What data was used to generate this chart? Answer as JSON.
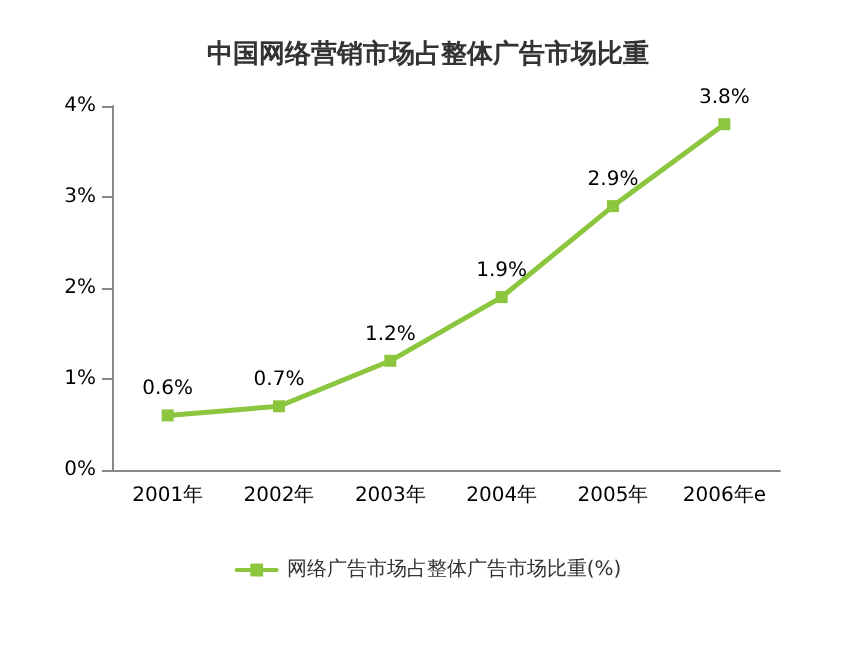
{
  "chart_data": {
    "type": "line",
    "title": "中国网络营销市场占整体广告市场比重",
    "categories": [
      "2001年",
      "2002年",
      "2003年",
      "2004年",
      "2005年",
      "2006年e"
    ],
    "series": [
      {
        "name": "网络广告市场占整体广告市场比重(%)",
        "color": "#8cc63f",
        "values": [
          0.6,
          0.7,
          1.2,
          1.9,
          2.9,
          3.8
        ],
        "value_labels": [
          "0.6%",
          "0.7%",
          "1.2%",
          "1.9%",
          "2.9%",
          "3.8%"
        ]
      }
    ],
    "ylim": [
      0,
      4
    ],
    "yticks": [
      {
        "value": 0,
        "label": "0%"
      },
      {
        "value": 1,
        "label": "1%"
      },
      {
        "value": 2,
        "label": "2%"
      },
      {
        "value": 3,
        "label": "3%"
      },
      {
        "value": 4,
        "label": "4%"
      }
    ],
    "grid": false,
    "legend": "bottom",
    "marker": "square",
    "line_style": "solid"
  }
}
